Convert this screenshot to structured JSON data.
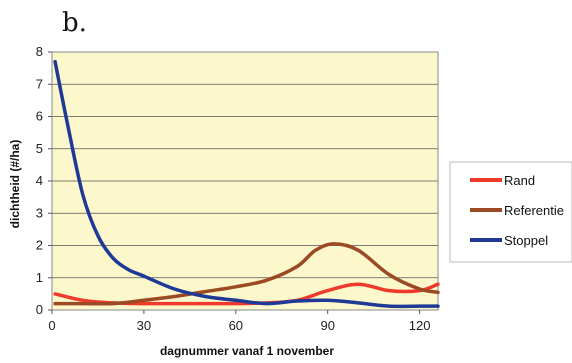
{
  "panel_label": "b.",
  "chart_data": {
    "type": "line",
    "xlabel": "dagnummer vanaf 1 november",
    "ylabel": "dichtheid (#/ha)",
    "xlim": [
      0,
      126
    ],
    "ylim": [
      0,
      8
    ],
    "xticks": [
      0,
      30,
      60,
      90,
      120
    ],
    "yticks": [
      0,
      1,
      2,
      3,
      4,
      5,
      6,
      7,
      8
    ],
    "grid": true,
    "legend_position": "right",
    "plot_background": "#fdf7cc",
    "series": [
      {
        "name": "Rand",
        "color": "#ee3a2a",
        "x": [
          1,
          10,
          20,
          30,
          40,
          50,
          60,
          70,
          80,
          90,
          100,
          110,
          120,
          126
        ],
        "y": [
          0.5,
          0.3,
          0.22,
          0.2,
          0.2,
          0.2,
          0.2,
          0.22,
          0.3,
          0.6,
          0.8,
          0.6,
          0.6,
          0.8
        ]
      },
      {
        "name": "Referentie",
        "color": "#9b4a23",
        "x": [
          1,
          10,
          20,
          30,
          40,
          50,
          60,
          70,
          80,
          86,
          92,
          100,
          110,
          120,
          126
        ],
        "y": [
          0.2,
          0.2,
          0.2,
          0.3,
          0.42,
          0.57,
          0.72,
          0.92,
          1.35,
          1.85,
          2.05,
          1.85,
          1.1,
          0.65,
          0.55
        ]
      },
      {
        "name": "Stoppel",
        "color": "#1f3996",
        "x": [
          1,
          5,
          10,
          15,
          20,
          25,
          30,
          40,
          50,
          60,
          70,
          80,
          90,
          100,
          110,
          120,
          126
        ],
        "y": [
          7.7,
          5.8,
          3.6,
          2.3,
          1.6,
          1.25,
          1.05,
          0.65,
          0.42,
          0.3,
          0.2,
          0.28,
          0.3,
          0.22,
          0.12,
          0.12,
          0.12
        ]
      }
    ]
  }
}
